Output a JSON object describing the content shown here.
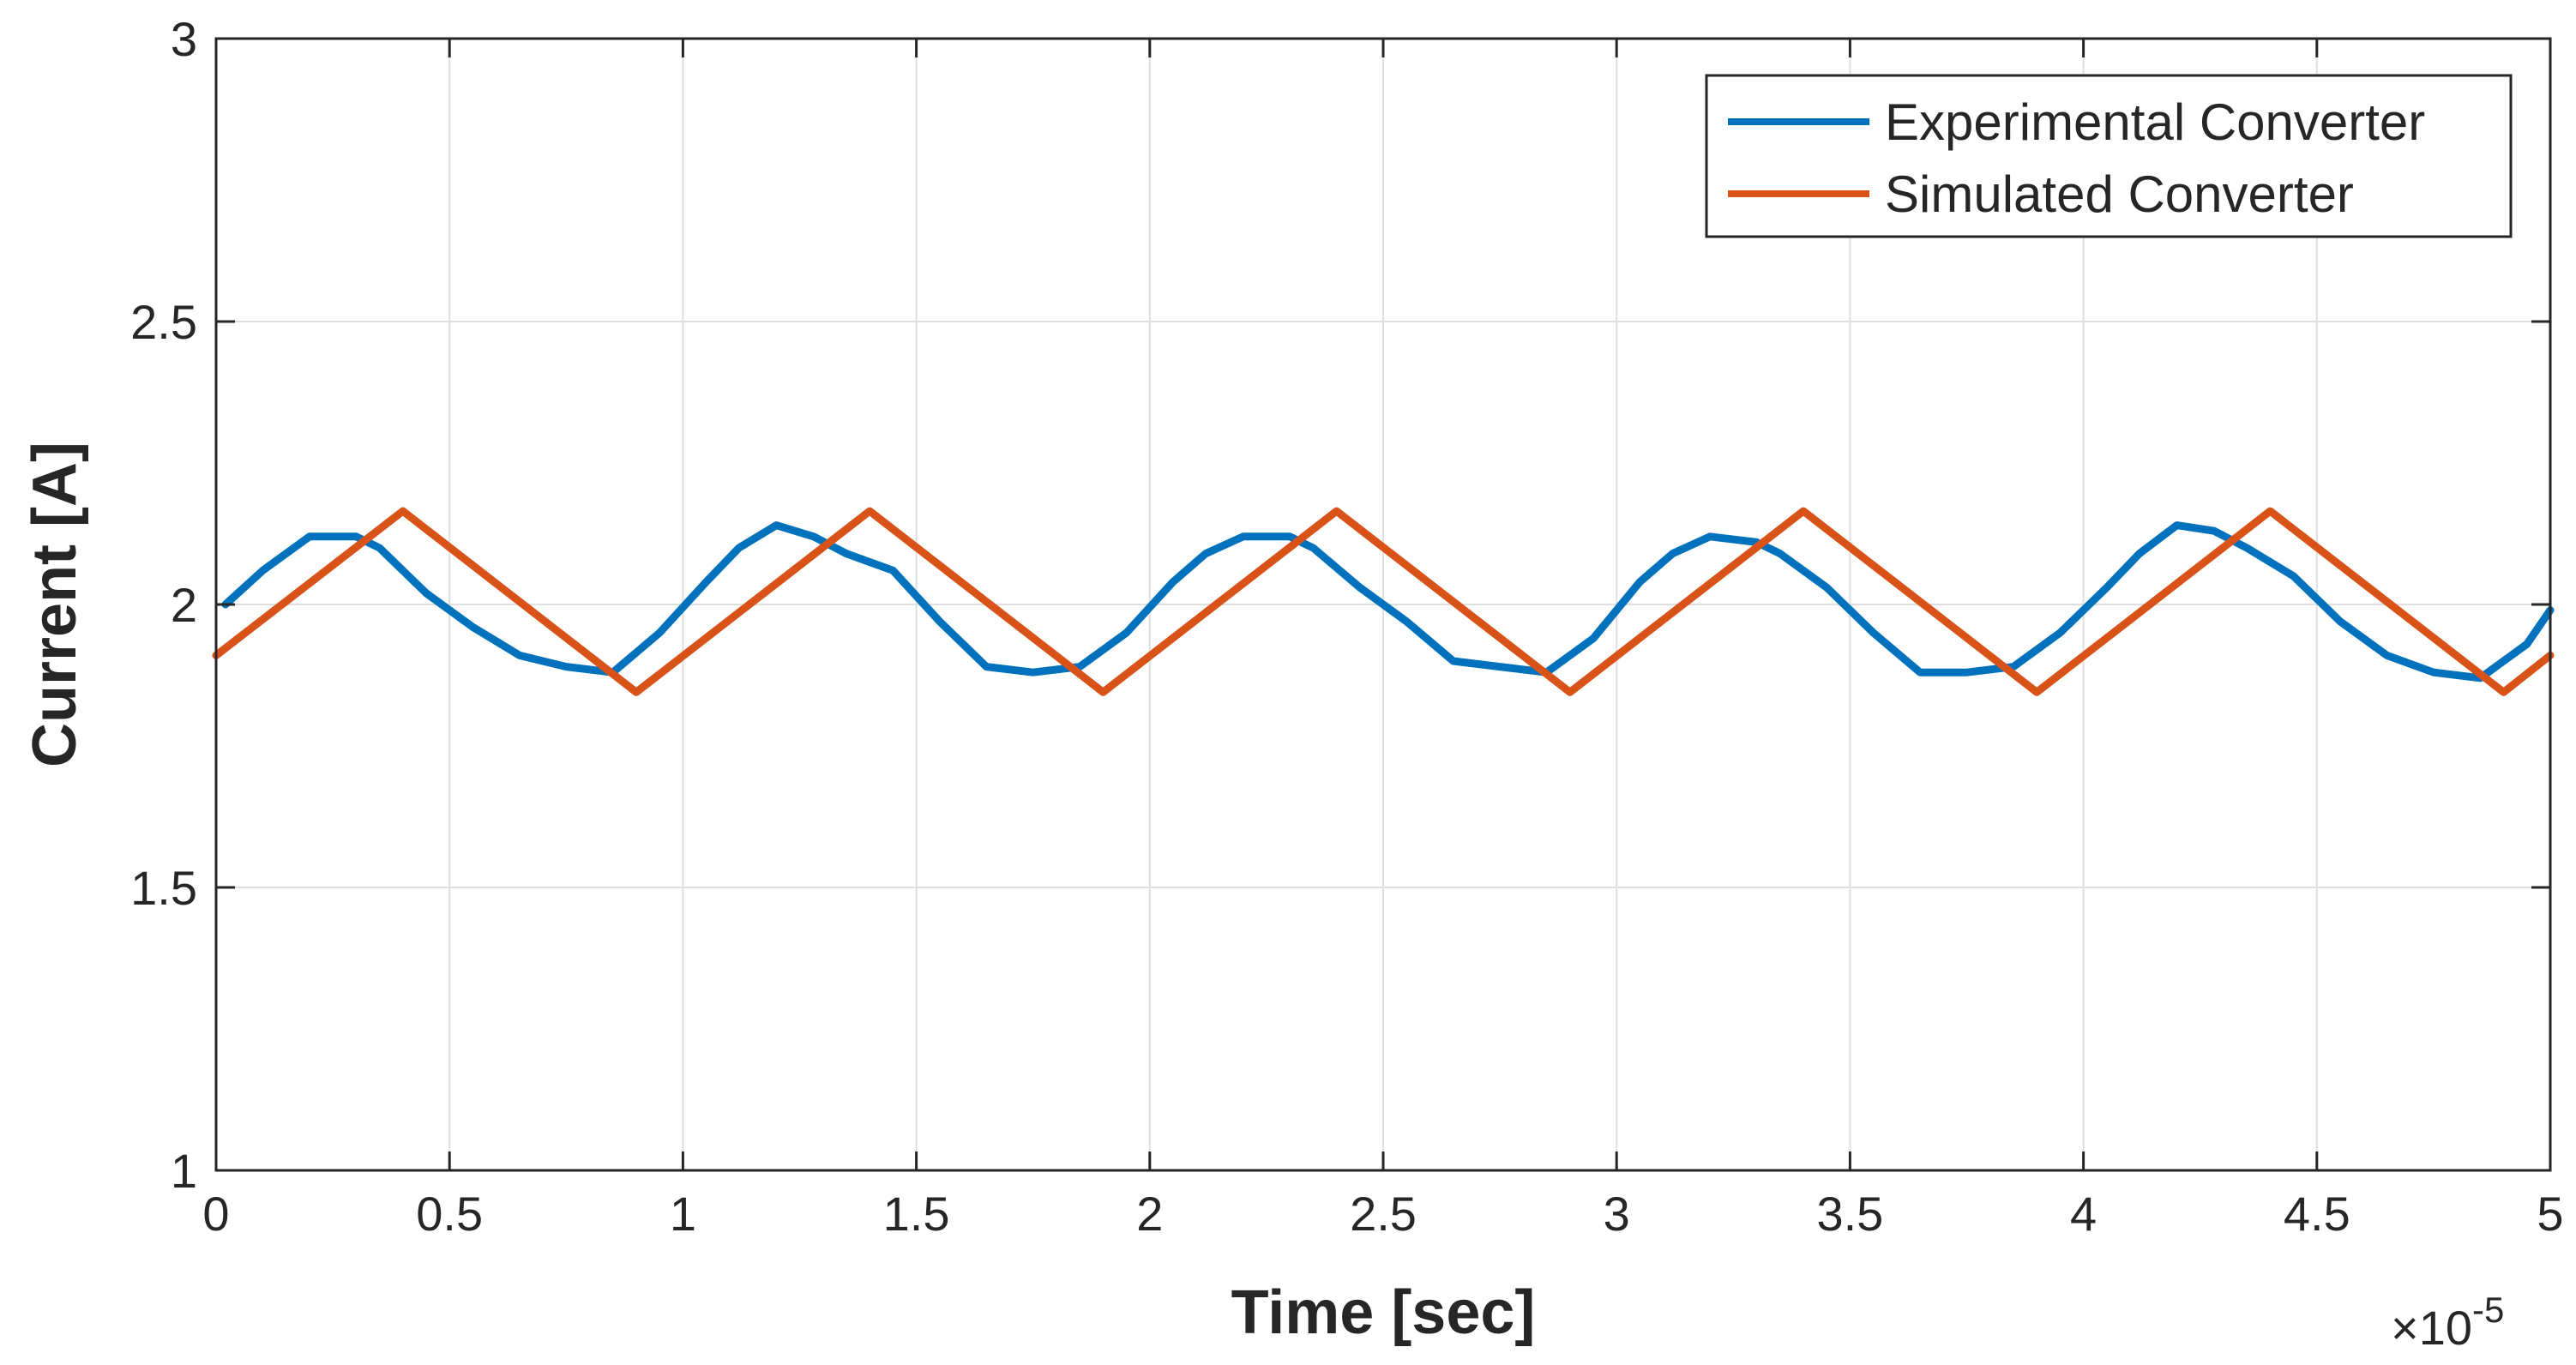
{
  "chart_data": {
    "type": "line",
    "title": "",
    "xlabel": "Time [sec]",
    "ylabel": "Current [A]",
    "x_exponent_label": {
      "base": "×10",
      "power": "-5"
    },
    "xlim": [
      0,
      5
    ],
    "ylim": [
      1,
      3
    ],
    "xticks": [
      0,
      0.5,
      1,
      1.5,
      2,
      2.5,
      3,
      3.5,
      4,
      4.5,
      5
    ],
    "xtick_labels": [
      "0",
      "0.5",
      "1",
      "1.5",
      "2",
      "2.5",
      "3",
      "3.5",
      "4",
      "4.5",
      "5"
    ],
    "yticks": [
      1,
      1.5,
      2,
      2.5,
      3
    ],
    "ytick_labels": [
      "1",
      "1.5",
      "2",
      "2.5",
      "3"
    ],
    "grid": true,
    "legend_position": "top-right",
    "colors": {
      "experimental": "#0072BD",
      "simulated": "#D95319",
      "grid": "#dfdfdf",
      "axis": "#262626"
    },
    "series": [
      {
        "name": "Experimental Converter",
        "color": "#0072BD",
        "x": [
          0.02,
          0.1,
          0.2,
          0.3,
          0.35,
          0.45,
          0.55,
          0.65,
          0.75,
          0.85,
          0.95,
          1.05,
          1.12,
          1.2,
          1.28,
          1.35,
          1.45,
          1.55,
          1.65,
          1.75,
          1.85,
          1.95,
          2.05,
          2.12,
          2.2,
          2.3,
          2.35,
          2.45,
          2.55,
          2.65,
          2.75,
          2.85,
          2.95,
          3.05,
          3.12,
          3.2,
          3.3,
          3.35,
          3.45,
          3.55,
          3.65,
          3.75,
          3.85,
          3.95,
          4.05,
          4.12,
          4.2,
          4.28,
          4.35,
          4.45,
          4.55,
          4.65,
          4.75,
          4.85,
          4.95,
          5.0
        ],
        "y": [
          2.0,
          2.06,
          2.12,
          2.12,
          2.1,
          2.02,
          1.96,
          1.91,
          1.89,
          1.88,
          1.95,
          2.04,
          2.1,
          2.14,
          2.12,
          2.09,
          2.06,
          1.97,
          1.89,
          1.88,
          1.89,
          1.95,
          2.04,
          2.09,
          2.12,
          2.12,
          2.1,
          2.03,
          1.97,
          1.9,
          1.89,
          1.88,
          1.94,
          2.04,
          2.09,
          2.12,
          2.11,
          2.09,
          2.03,
          1.95,
          1.88,
          1.88,
          1.89,
          1.95,
          2.03,
          2.09,
          2.14,
          2.13,
          2.1,
          2.05,
          1.97,
          1.91,
          1.88,
          1.87,
          1.93,
          1.99
        ]
      },
      {
        "name": "Simulated Converter",
        "color": "#D95319",
        "x": [
          0,
          0.4,
          0.9,
          1.4,
          1.9,
          2.4,
          2.9,
          3.4,
          3.9,
          4.4,
          4.9,
          5.0
        ],
        "y": [
          1.91,
          2.165,
          1.845,
          2.165,
          1.845,
          2.165,
          1.845,
          2.165,
          1.845,
          2.165,
          1.845,
          1.91
        ]
      }
    ]
  }
}
